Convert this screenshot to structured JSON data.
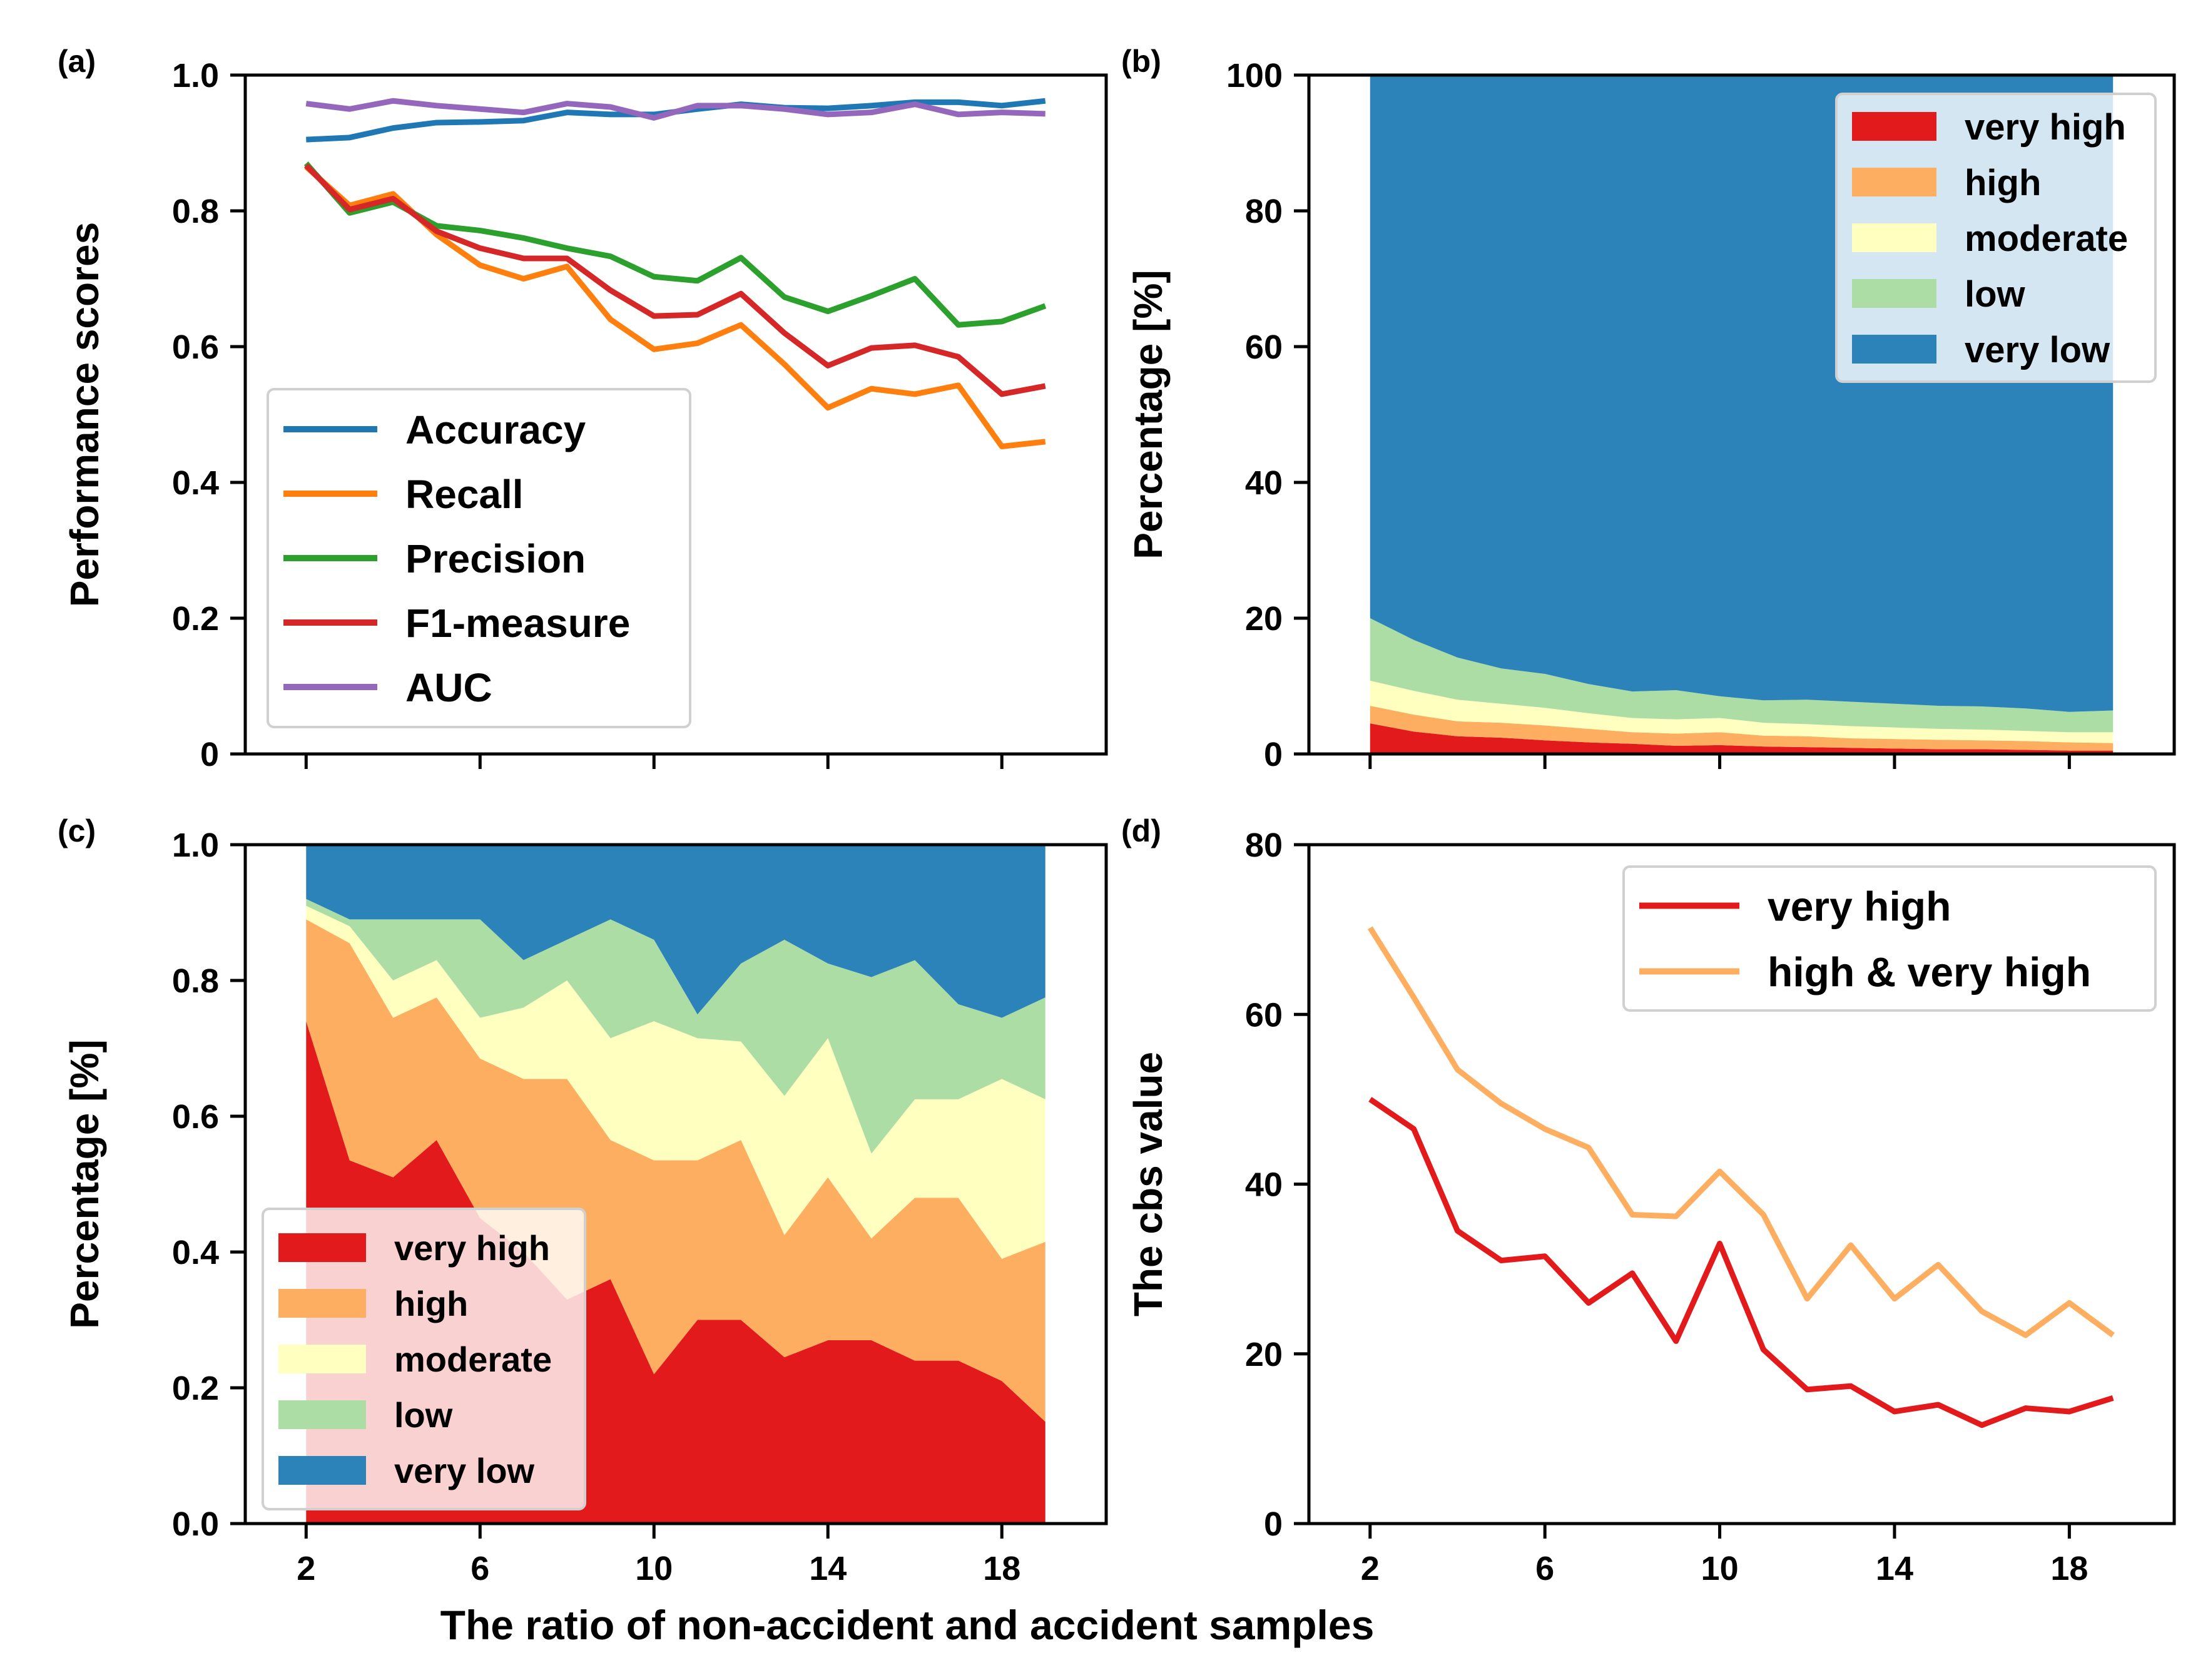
{
  "figure": {
    "xlabel": "The ratio of non-accident and accident samples",
    "x": [
      2,
      3,
      4,
      5,
      6,
      7,
      8,
      9,
      10,
      11,
      12,
      13,
      14,
      15,
      16,
      17,
      18,
      19
    ]
  },
  "chart_data": [
    {
      "id": "a",
      "type": "line",
      "panel_label": "(a)",
      "title": "",
      "xlabel": "",
      "ylabel": "Performance scores",
      "xlim": [
        0.6,
        20.4
      ],
      "ylim": [
        0,
        1.0
      ],
      "xticks": [
        2,
        6,
        10,
        14,
        18
      ],
      "xtick_labels": [
        "",
        "",
        "",
        "",
        ""
      ],
      "yticks": [
        0,
        0.2,
        0.4,
        0.6,
        0.8,
        1.0
      ],
      "ytick_labels": [
        "0",
        "0.2",
        "0.4",
        "0.6",
        "0.8",
        "1.0"
      ],
      "legend": "lower-left",
      "series": [
        {
          "name": "Accuracy",
          "color": "#1f77b4",
          "values": [
            0.905,
            0.908,
            0.922,
            0.93,
            0.931,
            0.933,
            0.945,
            0.942,
            0.942,
            0.95,
            0.957,
            0.952,
            0.951,
            0.955,
            0.96,
            0.96,
            0.955,
            0.962
          ]
        },
        {
          "name": "Recall",
          "color": "#ff7f0e",
          "values": [
            0.865,
            0.808,
            0.825,
            0.765,
            0.72,
            0.7,
            0.718,
            0.64,
            0.596,
            0.605,
            0.632,
            0.574,
            0.51,
            0.538,
            0.53,
            0.543,
            0.453,
            0.46
          ]
        },
        {
          "name": "Precision",
          "color": "#2ca02c",
          "values": [
            0.87,
            0.797,
            0.813,
            0.778,
            0.771,
            0.76,
            0.745,
            0.733,
            0.703,
            0.697,
            0.731,
            0.673,
            0.652,
            0.675,
            0.7,
            0.632,
            0.637,
            0.66
          ]
        },
        {
          "name": "F1-measure",
          "color": "#d62728",
          "values": [
            0.867,
            0.802,
            0.818,
            0.77,
            0.745,
            0.73,
            0.73,
            0.683,
            0.645,
            0.647,
            0.678,
            0.62,
            0.572,
            0.598,
            0.602,
            0.585,
            0.53,
            0.542
          ]
        },
        {
          "name": "AUC",
          "color": "#9467bd",
          "values": [
            0.958,
            0.95,
            0.962,
            0.955,
            0.95,
            0.945,
            0.958,
            0.953,
            0.937,
            0.955,
            0.955,
            0.95,
            0.942,
            0.945,
            0.957,
            0.942,
            0.945,
            0.943
          ]
        }
      ]
    },
    {
      "id": "b",
      "type": "area",
      "stacked": true,
      "panel_label": "(b)",
      "title": "",
      "xlabel": "",
      "ylabel": "Percentage [%]",
      "xlim": [
        0.6,
        20.4
      ],
      "ylim": [
        0,
        100
      ],
      "xticks": [
        2,
        6,
        10,
        14,
        18
      ],
      "xtick_labels": [
        "",
        "",
        "",
        "",
        ""
      ],
      "yticks": [
        0,
        20,
        40,
        60,
        80,
        100
      ],
      "ytick_labels": [
        "0",
        "20",
        "40",
        "60",
        "80",
        "100"
      ],
      "legend": "top-right",
      "series": [
        {
          "name": "very high",
          "color": "#e31a1c",
          "values": [
            4.5,
            3.3,
            2.6,
            2.4,
            2.0,
            1.7,
            1.5,
            1.2,
            1.3,
            1.1,
            1.0,
            0.9,
            0.8,
            0.7,
            0.7,
            0.6,
            0.5,
            0.5
          ]
        },
        {
          "name": "high",
          "color": "#fdae61",
          "values": [
            2.6,
            2.5,
            2.2,
            2.2,
            2.2,
            2.0,
            1.7,
            1.8,
            1.9,
            1.6,
            1.6,
            1.4,
            1.4,
            1.4,
            1.3,
            1.3,
            1.2,
            1.1
          ]
        },
        {
          "name": "moderate",
          "color": "#ffffbf",
          "values": [
            3.7,
            3.5,
            3.2,
            2.8,
            2.6,
            2.3,
            2.1,
            2.1,
            2.1,
            1.9,
            1.8,
            1.8,
            1.7,
            1.6,
            1.6,
            1.5,
            1.5,
            1.6
          ]
        },
        {
          "name": "low",
          "color": "#abdda4",
          "values": [
            9.2,
            7.5,
            6.2,
            5.2,
            5.0,
            4.3,
            3.9,
            4.3,
            3.2,
            3.3,
            3.6,
            3.6,
            3.5,
            3.4,
            3.4,
            3.3,
            3.0,
            3.2
          ]
        },
        {
          "name": "very low",
          "color": "#2b83ba",
          "values": [
            80.0,
            83.2,
            85.8,
            87.4,
            88.2,
            89.7,
            90.8,
            90.6,
            91.5,
            92.1,
            92.0,
            92.3,
            92.6,
            92.9,
            93.0,
            93.3,
            93.8,
            93.6
          ]
        }
      ]
    },
    {
      "id": "c",
      "type": "area",
      "stacked": true,
      "panel_label": "(c)",
      "title": "",
      "xlabel": "",
      "ylabel": "Percentage [%]",
      "xlim": [
        0.6,
        20.4
      ],
      "ylim": [
        0,
        1.0
      ],
      "xticks": [
        2,
        6,
        10,
        14,
        18
      ],
      "xtick_labels": [
        "2",
        "6",
        "10",
        "14",
        "18"
      ],
      "yticks": [
        0,
        0.2,
        0.4,
        0.6,
        0.8,
        1.0
      ],
      "ytick_labels": [
        "0.0",
        "0.2",
        "0.4",
        "0.6",
        "0.8",
        "1.0"
      ],
      "legend": "lower-left",
      "series": [
        {
          "name": "very high",
          "color": "#e31a1c",
          "values": [
            0.74,
            0.535,
            0.51,
            0.565,
            0.45,
            0.4,
            0.33,
            0.36,
            0.22,
            0.3,
            0.3,
            0.245,
            0.27,
            0.27,
            0.24,
            0.24,
            0.21,
            0.15
          ]
        },
        {
          "name": "high",
          "color": "#fdae61",
          "values": [
            0.15,
            0.32,
            0.235,
            0.21,
            0.235,
            0.255,
            0.325,
            0.205,
            0.315,
            0.235,
            0.265,
            0.18,
            0.24,
            0.15,
            0.24,
            0.24,
            0.18,
            0.265
          ]
        },
        {
          "name": "moderate",
          "color": "#ffffbf",
          "values": [
            0.02,
            0.025,
            0.055,
            0.055,
            0.06,
            0.105,
            0.145,
            0.15,
            0.205,
            0.18,
            0.145,
            0.205,
            0.205,
            0.125,
            0.145,
            0.145,
            0.265,
            0.21
          ]
        },
        {
          "name": "low",
          "color": "#abdda4",
          "values": [
            0.01,
            0.01,
            0.09,
            0.06,
            0.145,
            0.07,
            0.06,
            0.175,
            0.12,
            0.035,
            0.115,
            0.23,
            0.11,
            0.26,
            0.205,
            0.14,
            0.09,
            0.15
          ]
        },
        {
          "name": "very low",
          "color": "#2b83ba",
          "values": [
            0.08,
            0.11,
            0.11,
            0.11,
            0.11,
            0.17,
            0.14,
            0.11,
            0.14,
            0.25,
            0.175,
            0.14,
            0.175,
            0.195,
            0.17,
            0.235,
            0.255,
            0.225
          ]
        }
      ]
    },
    {
      "id": "d",
      "type": "line",
      "panel_label": "(d)",
      "title": "",
      "xlabel": "",
      "ylabel": "The cbs value",
      "xlim": [
        0.6,
        20.4
      ],
      "ylim": [
        0,
        80
      ],
      "xticks": [
        2,
        6,
        10,
        14,
        18
      ],
      "xtick_labels": [
        "2",
        "6",
        "10",
        "14",
        "18"
      ],
      "yticks": [
        0,
        20,
        40,
        60,
        80
      ],
      "ytick_labels": [
        "0",
        "20",
        "40",
        "60",
        "80"
      ],
      "legend": "top-right",
      "series": [
        {
          "name": "very high",
          "color": "#e31a1c",
          "values": [
            50,
            46.5,
            34.5,
            31,
            31.5,
            26,
            29.5,
            21.5,
            33,
            20.5,
            15.8,
            16.2,
            13.2,
            14,
            11.6,
            13.6,
            13.2,
            14.8
          ]
        },
        {
          "name": "high & very high",
          "color": "#fdae61",
          "values": [
            70.2,
            62,
            53.5,
            49.5,
            46.5,
            44.3,
            36.4,
            36.2,
            41.5,
            36.4,
            26.5,
            32.8,
            26.5,
            30.5,
            25,
            22.2,
            26,
            22.2
          ]
        }
      ]
    }
  ]
}
